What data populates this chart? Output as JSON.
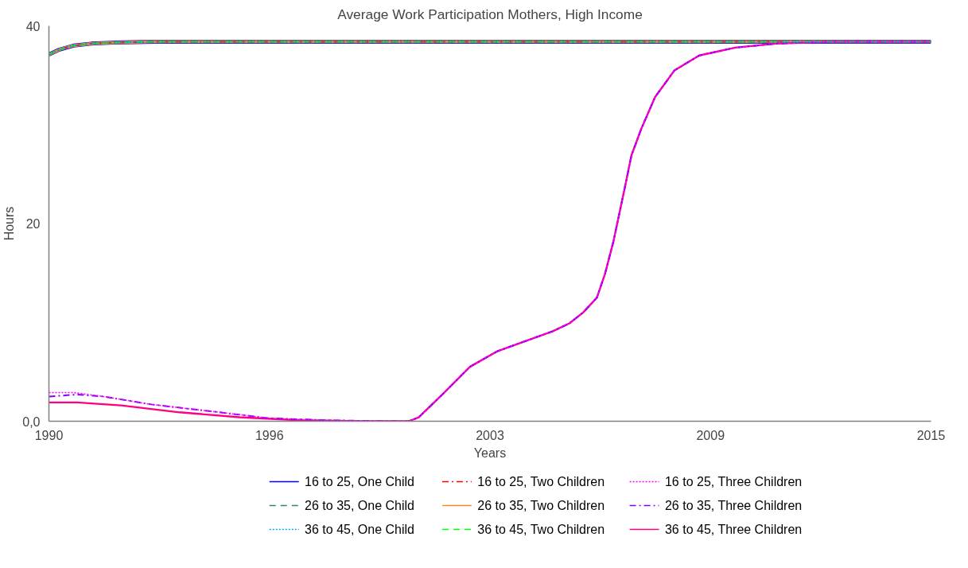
{
  "chart_data": {
    "type": "line",
    "title": "Average Work Participation Mothers, High Income",
    "xlabel": "Years",
    "ylabel": "Hours",
    "xlim": [
      1990,
      2015
    ],
    "xticks": [
      1990,
      {
        "value": 1996.25,
        "label": "1996"
      },
      {
        "value": 2002.5,
        "label": "2003"
      },
      {
        "value": 2008.75,
        "label": "2009"
      },
      2015
    ],
    "ylim": [
      0,
      40
    ],
    "yticks": [
      {
        "value": 0,
        "label": "0,0"
      },
      20,
      40
    ],
    "grid": false,
    "legend": "bottom",
    "marker": "none",
    "series": [
      {
        "name": "16 to 25, One Child",
        "color": "#0000ff",
        "line_style": "solid",
        "x": [
          1990,
          1990.3,
          1990.7,
          1991.2,
          1991.8,
          1993,
          2015
        ],
        "values": [
          37.1,
          37.6,
          38.0,
          38.2,
          38.3,
          38.4,
          38.4
        ]
      },
      {
        "name": "26 to 35, One Child",
        "color": "#2e8b57",
        "line_style": "dashed",
        "x": [
          1990,
          1990.3,
          1990.7,
          1991.2,
          1991.8,
          1993,
          2015
        ],
        "values": [
          37.1,
          37.6,
          38.0,
          38.2,
          38.3,
          38.4,
          38.4
        ]
      },
      {
        "name": "36 to 45, One Child",
        "color": "#00a0ff",
        "line_style": "dotted",
        "x": [
          1990,
          1990.3,
          1990.7,
          1991.2,
          1991.8,
          1993,
          2015
        ],
        "values": [
          37.1,
          37.6,
          38.0,
          38.2,
          38.3,
          38.4,
          38.4
        ]
      },
      {
        "name": "16 to 25, Two Children",
        "color": "#ff0000",
        "line_style": "dashdot",
        "x": [
          1990,
          1990.3,
          1990.7,
          1991.2,
          1991.8,
          1993,
          2015
        ],
        "values": [
          37.1,
          37.6,
          38.0,
          38.2,
          38.3,
          38.4,
          38.4
        ]
      },
      {
        "name": "26 to 35, Two Children",
        "color": "#ff8c1a",
        "line_style": "solid",
        "x": [
          1990,
          1990.3,
          1990.7,
          1991.2,
          1991.8,
          1993,
          2015
        ],
        "values": [
          37.1,
          37.6,
          38.0,
          38.2,
          38.3,
          38.4,
          38.4
        ]
      },
      {
        "name": "36 to 45, Two Children",
        "color": "#00ff00",
        "line_style": "dashed",
        "x": [
          1990,
          1990.3,
          1990.7,
          1991.2,
          1991.8,
          1993,
          2015
        ],
        "values": [
          37.1,
          37.6,
          38.0,
          38.2,
          38.3,
          38.4,
          38.4
        ]
      },
      {
        "name": "16 to 25, Three Children",
        "color": "#ff00ff",
        "line_style": "dotted",
        "x": [
          1990,
          1990.7,
          1991.55,
          1992.9,
          1994.6,
          1996.25,
          1997.9,
          1999.6,
          2000.2,
          2000.48,
          2001.15,
          2001.93,
          2002.72,
          2003.5,
          2004.28,
          2004.75,
          2005.14,
          2005.53,
          2005.76,
          2006.0,
          2006.32,
          2006.51,
          2006.79,
          2007.18,
          2007.73,
          2008.43,
          2009.45,
          2010.6,
          2012.2,
          2015
        ],
        "values": [
          2.9,
          2.9,
          2.5,
          1.7,
          1.0,
          0.3,
          0.1,
          0,
          0,
          0.4,
          2.7,
          5.5,
          7.1,
          8.1,
          9.1,
          9.9,
          11.0,
          12.5,
          14.9,
          18.2,
          23.6,
          26.9,
          29.6,
          32.8,
          35.5,
          37.0,
          37.8,
          38.2,
          38.4,
          38.4
        ]
      },
      {
        "name": "26 to 35, Three Children",
        "color": "#8000ff",
        "line_style": "dashdot",
        "x": [
          1990,
          1990.8,
          1991.55,
          1992.9,
          1994.6,
          1996.25,
          1997.9,
          1999.6,
          2000.2,
          2000.48,
          2001.15,
          2001.93,
          2002.72,
          2003.5,
          2004.28,
          2004.75,
          2005.14,
          2005.53,
          2005.76,
          2006.0,
          2006.32,
          2006.51,
          2006.79,
          2007.18,
          2007.73,
          2008.43,
          2009.45,
          2010.6,
          2012.2,
          2015
        ],
        "values": [
          2.5,
          2.7,
          2.5,
          1.7,
          1.0,
          0.3,
          0.1,
          0,
          0,
          0.4,
          2.7,
          5.5,
          7.1,
          8.1,
          9.1,
          9.9,
          11.0,
          12.5,
          14.9,
          18.2,
          23.6,
          26.9,
          29.6,
          32.8,
          35.5,
          37.0,
          37.8,
          38.2,
          38.4,
          38.4
        ]
      },
      {
        "name": "36 to 45, Three Children",
        "color": "#ff0080",
        "line_style": "solid",
        "x": [
          1990,
          1990.8,
          1992.05,
          1993.7,
          1995.4,
          1997.1,
          1998.8,
          2000.2,
          2000.48,
          2001.15,
          2001.93,
          2002.72,
          2003.5,
          2004.28,
          2004.75,
          2005.14,
          2005.53,
          2005.76,
          2006.0,
          2006.32,
          2006.51,
          2006.79,
          2007.18,
          2007.73,
          2008.43,
          2009.45,
          2010.6,
          2012.2,
          2015
        ],
        "values": [
          1.9,
          1.9,
          1.6,
          0.9,
          0.4,
          0.1,
          0,
          0,
          0.4,
          2.7,
          5.5,
          7.1,
          8.1,
          9.1,
          9.9,
          11.0,
          12.5,
          14.9,
          18.2,
          23.6,
          26.9,
          29.6,
          32.8,
          35.5,
          37.0,
          37.8,
          38.2,
          38.4,
          38.4
        ]
      }
    ]
  }
}
